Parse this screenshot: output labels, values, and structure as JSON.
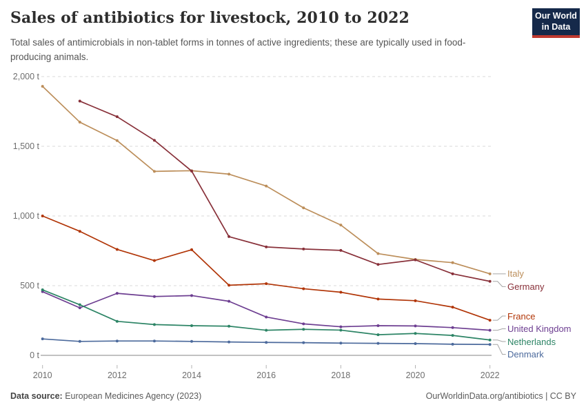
{
  "header": {
    "logo": {
      "line1": "Our World",
      "line2": "in Data",
      "bg_color": "#15294a",
      "stripe_color": "#bf392f"
    }
  },
  "chart_data": {
    "type": "line",
    "title": "Sales of antibiotics for livestock, 2010 to 2022",
    "subtitle": "Total sales of antimicrobials in non-tablet forms in tonnes of active ingredients; these are typically used in food-producing animals.",
    "unit": "t",
    "grid": true,
    "legend_position": "right-of-line-ends",
    "xlim": [
      2010,
      2022
    ],
    "ylim": [
      0,
      2000
    ],
    "x": [
      2010,
      2011,
      2012,
      2013,
      2014,
      2015,
      2016,
      2017,
      2018,
      2019,
      2020,
      2021,
      2022
    ],
    "x_ticks": [
      {
        "year": 2010,
        "label": "2010"
      },
      {
        "year": 2012,
        "label": "2012"
      },
      {
        "year": 2014,
        "label": "2014"
      },
      {
        "year": 2016,
        "label": "2016"
      },
      {
        "year": 2018,
        "label": "2018"
      },
      {
        "year": 2020,
        "label": "2020"
      },
      {
        "year": 2022,
        "label": "2022"
      }
    ],
    "y_ticks": [
      {
        "value": 2000,
        "label": "2,000 t"
      },
      {
        "value": 1500,
        "label": "1,500 t"
      },
      {
        "value": 1000,
        "label": "1,000 t"
      },
      {
        "value": 500,
        "label": "500 t"
      },
      {
        "value": 0,
        "label": "0 t"
      }
    ],
    "series": [
      {
        "name": "Italy",
        "color": "#BC8E5A",
        "values": [
          1930,
          1673,
          1541,
          1320,
          1325,
          1300,
          1215,
          1058,
          935,
          730,
          688,
          665,
          585
        ]
      },
      {
        "name": "Germany",
        "color": "#883039",
        "values": [
          null,
          1824,
          1712,
          1543,
          1322,
          852,
          778,
          763,
          753,
          652,
          685,
          585,
          531
        ]
      },
      {
        "name": "France",
        "color": "#B13507",
        "values": [
          1000,
          890,
          760,
          680,
          758,
          503,
          514,
          478,
          453,
          404,
          392,
          346,
          252
        ]
      },
      {
        "name": "United Kingdom",
        "color": "#6D3E91",
        "values": [
          457,
          341,
          445,
          422,
          429,
          388,
          275,
          226,
          205,
          213,
          211,
          199,
          180
        ]
      },
      {
        "name": "Netherlands",
        "color": "#2C8465",
        "values": [
          470,
          363,
          244,
          221,
          213,
          209,
          180,
          187,
          181,
          148,
          157,
          143,
          110
        ]
      },
      {
        "name": "Denmark",
        "color": "#4C6A9C",
        "values": [
          118,
          100,
          103,
          103,
          100,
          96,
          93,
          91,
          88,
          86,
          84,
          80,
          78
        ]
      }
    ]
  },
  "footer": {
    "source_label": "Data source:",
    "source_text": "European Medicines Agency (2023)",
    "license_text": "OurWorldinData.org/antibiotics | CC BY"
  }
}
